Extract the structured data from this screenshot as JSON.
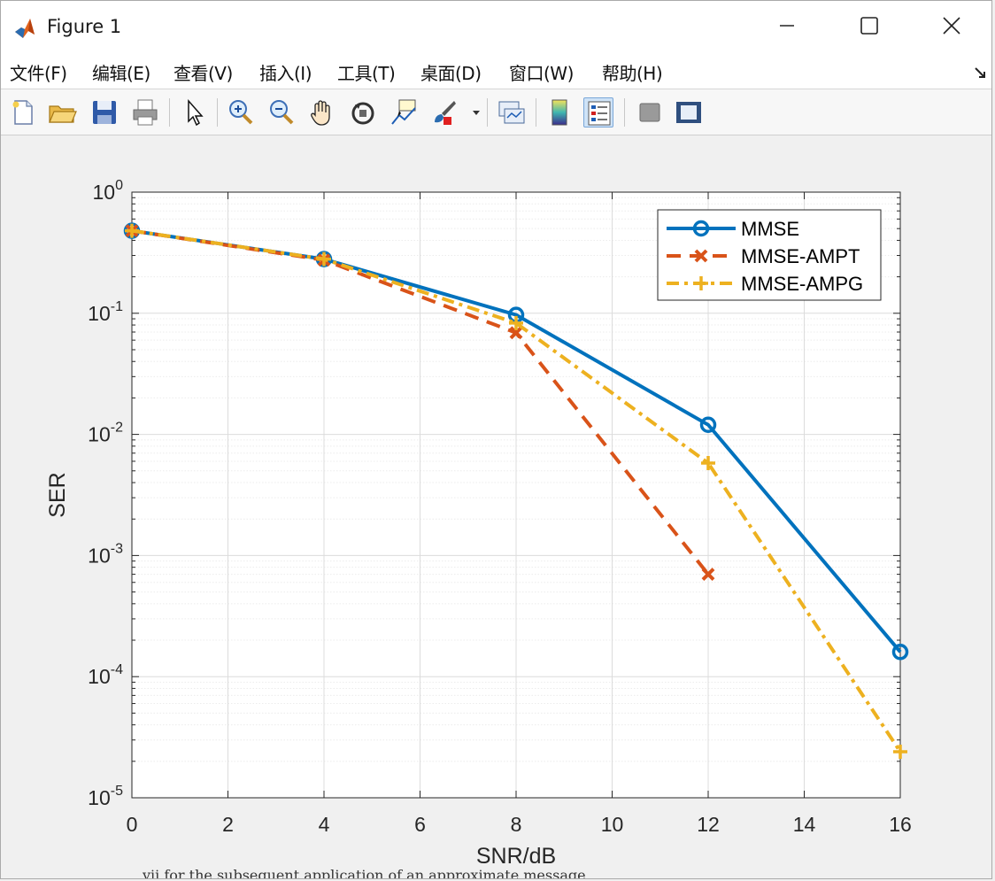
{
  "window": {
    "title": "Figure 1"
  },
  "menu": [
    {
      "label": "文件(F)"
    },
    {
      "label": "编辑(E)"
    },
    {
      "label": "查看(V)"
    },
    {
      "label": "插入(I)"
    },
    {
      "label": "工具(T)"
    },
    {
      "label": "桌面(D)"
    },
    {
      "label": "窗口(W)"
    },
    {
      "label": "帮助(H)"
    }
  ],
  "toolbar": {
    "icons": [
      "new-figure-icon",
      "open-file-icon",
      "save-icon",
      "print-icon",
      "pointer-icon",
      "zoom-in-icon",
      "zoom-out-icon",
      "pan-hand-icon",
      "rotate-3d-icon",
      "data-cursor-icon",
      "brush-icon",
      "link-plot-icon",
      "colorbar-icon",
      "legend-icon",
      "hide-plot-tools-icon",
      "show-plot-tools-icon"
    ]
  },
  "colors": {
    "mmse": "#0072BD",
    "ampt": "#D95319",
    "ampg": "#EDB120"
  },
  "background_text": "vii for the subsequent application of an approximate message",
  "chart_data": {
    "type": "line",
    "xlabel": "SNR/dB",
    "ylabel": "SER",
    "yscale": "log",
    "xlim": [
      0,
      16
    ],
    "ylim": [
      1e-05,
      1
    ],
    "xticks": [
      0,
      2,
      4,
      6,
      8,
      10,
      12,
      14,
      16
    ],
    "ytick_exponents": [
      0,
      -1,
      -2,
      -3,
      -4,
      -5
    ],
    "grid": true,
    "minor_grid": true,
    "legend_position": "top-right",
    "series": [
      {
        "name": "MMSE",
        "x": [
          0,
          4,
          8,
          12,
          16
        ],
        "y": [
          0.48,
          0.28,
          0.097,
          0.012,
          0.00016
        ],
        "color": "#0072BD",
        "marker": "circle",
        "line": "solid"
      },
      {
        "name": "MMSE-AMPT",
        "x": [
          0,
          4,
          8,
          12
        ],
        "y": [
          0.48,
          0.275,
          0.069,
          0.0007
        ],
        "color": "#D95319",
        "marker": "x",
        "line": "dashed"
      },
      {
        "name": "MMSE-AMPG",
        "x": [
          0,
          4,
          8,
          12,
          16
        ],
        "y": [
          0.48,
          0.28,
          0.083,
          0.0058,
          2.4e-05
        ],
        "color": "#EDB120",
        "marker": "plus",
        "line": "dashdot"
      }
    ]
  }
}
